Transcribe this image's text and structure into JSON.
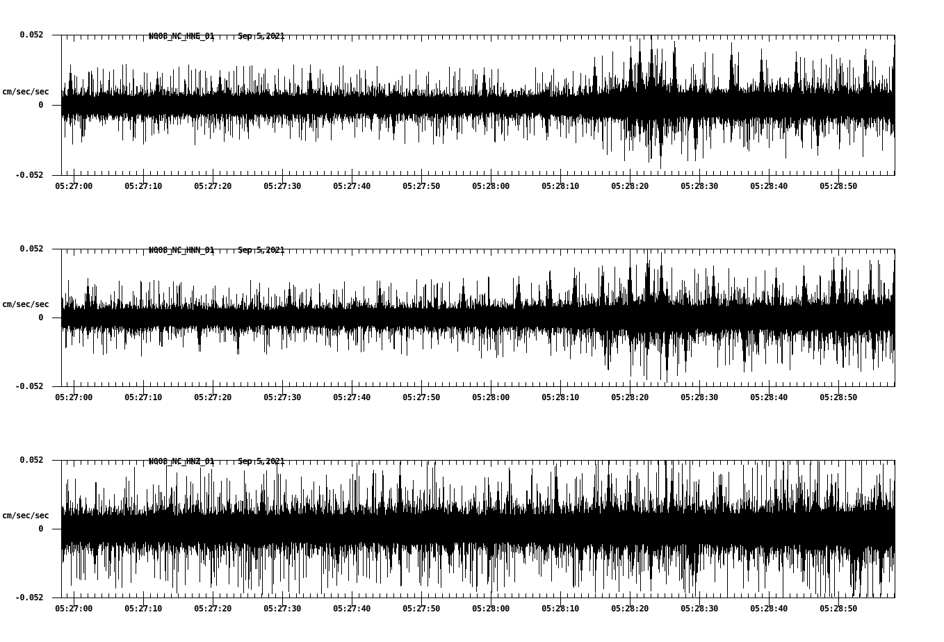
{
  "figure": {
    "background": "#ffffff",
    "trace_color": "#000000",
    "kind": "three-component strong-motion seismogram record"
  },
  "chart_data": [
    {
      "type": "line",
      "station": "N008_NC_HNE_01",
      "date": "Sep 5,2021",
      "ylabel": "cm/sec/sec",
      "ylim": [
        -0.052,
        0.052
      ],
      "yticks": [
        0.052,
        0,
        -0.052
      ],
      "ytick_labels": [
        "0.052",
        "0",
        "-0.052"
      ],
      "xticks": [
        "05:27:00",
        "05:27:10",
        "05:27:20",
        "05:27:30",
        "05:27:40",
        "05:27:50",
        "05:28:00",
        "05:28:10",
        "05:28:20",
        "05:28:30",
        "05:28:40",
        "05:28:50"
      ],
      "x_window": [
        "05:26:58",
        "05:28:58"
      ],
      "x_major_tick_interval_seconds": 10,
      "x_minor_tick_interval_seconds": 1,
      "description": "East-component acceleration: steady noise ~±0.014, earthquake arrival ~05:28:12, peak shaking ±0.052 near 05:28:20-05:28:25, elevated coda to end",
      "seed": 11,
      "envelope_t_amp": [
        [
          -2,
          0.014
        ],
        [
          10,
          0.014
        ],
        [
          20,
          0.014
        ],
        [
          30,
          0.0145
        ],
        [
          40,
          0.014
        ],
        [
          50,
          0.0135
        ],
        [
          58,
          0.013
        ],
        [
          64,
          0.0125
        ],
        [
          70,
          0.013
        ],
        [
          74,
          0.016
        ],
        [
          78,
          0.019
        ],
        [
          81,
          0.021
        ],
        [
          84,
          0.022
        ],
        [
          87,
          0.02
        ],
        [
          91,
          0.018
        ],
        [
          95,
          0.019
        ],
        [
          100,
          0.019
        ],
        [
          105,
          0.018
        ],
        [
          110,
          0.018
        ],
        [
          114,
          0.019
        ],
        [
          118,
          0.019
        ]
      ],
      "spikes_t_amp_dir": [
        [
          -0.5,
          0.03,
          1
        ],
        [
          12,
          0.025,
          1
        ],
        [
          21,
          0.026,
          1
        ],
        [
          34,
          0.03,
          1
        ],
        [
          46,
          0.027,
          -1
        ],
        [
          59,
          0.028,
          1
        ],
        [
          68,
          0.026,
          -1
        ],
        [
          74.9,
          0.036,
          1
        ],
        [
          80.1,
          0.044,
          1
        ],
        [
          81.4,
          0.05,
          1
        ],
        [
          83.1,
          0.052,
          1
        ],
        [
          84.4,
          0.048,
          -1
        ],
        [
          86.4,
          0.048,
          1
        ],
        [
          89.4,
          0.042,
          -1
        ],
        [
          94.6,
          0.047,
          1
        ],
        [
          98.9,
          0.042,
          1
        ],
        [
          103.9,
          0.04,
          1
        ],
        [
          107,
          0.038,
          -1
        ],
        [
          113.9,
          0.042,
          1
        ],
        [
          118,
          0.045,
          1
        ]
      ]
    },
    {
      "type": "line",
      "station": "N008_NC_HNN_01",
      "date": "Sep 5,2021",
      "ylabel": "cm/sec/sec",
      "ylim": [
        -0.052,
        0.052
      ],
      "yticks": [
        0.052,
        0,
        -0.052
      ],
      "ytick_labels": [
        "0.052",
        "0",
        "-0.052"
      ],
      "xticks": [
        "05:27:00",
        "05:27:10",
        "05:27:20",
        "05:27:30",
        "05:27:40",
        "05:27:50",
        "05:28:00",
        "05:28:10",
        "05:28:20",
        "05:28:30",
        "05:28:40",
        "05:28:50"
      ],
      "x_window": [
        "05:26:58",
        "05:28:58"
      ],
      "x_major_tick_interval_seconds": 10,
      "x_minor_tick_interval_seconds": 1,
      "description": "North-component acceleration: noise ~±0.013 gradually rising, strongest shaking ±0.052 near 05:28:20-05:28:25 with deep negative swing, large late pulses near 05:28:49",
      "seed": 22,
      "envelope_t_amp": [
        [
          -2,
          0.013
        ],
        [
          8,
          0.014
        ],
        [
          18,
          0.013
        ],
        [
          28,
          0.013
        ],
        [
          38,
          0.0135
        ],
        [
          48,
          0.014
        ],
        [
          56,
          0.0145
        ],
        [
          63,
          0.015
        ],
        [
          69,
          0.016
        ],
        [
          73,
          0.017
        ],
        [
          77,
          0.019
        ],
        [
          80,
          0.021
        ],
        [
          83,
          0.023
        ],
        [
          86,
          0.021
        ],
        [
          90,
          0.019
        ],
        [
          95,
          0.019
        ],
        [
          100,
          0.02
        ],
        [
          104,
          0.02
        ],
        [
          108,
          0.021
        ],
        [
          112,
          0.02
        ],
        [
          118,
          0.021
        ]
      ],
      "spikes_t_amp_dir": [
        [
          2,
          0.03,
          1
        ],
        [
          18,
          0.026,
          -1
        ],
        [
          31,
          0.027,
          1
        ],
        [
          44,
          0.028,
          1
        ],
        [
          56,
          0.03,
          1
        ],
        [
          64,
          0.032,
          1
        ],
        [
          68.5,
          0.036,
          1
        ],
        [
          72,
          0.038,
          1
        ],
        [
          76,
          0.04,
          1
        ],
        [
          80,
          0.048,
          1
        ],
        [
          82.5,
          0.052,
          1
        ],
        [
          84.5,
          0.05,
          1
        ],
        [
          85.3,
          0.05,
          -1
        ],
        [
          88,
          0.042,
          -1
        ],
        [
          92,
          0.04,
          1
        ],
        [
          96.4,
          0.042,
          -1
        ],
        [
          101,
          0.038,
          1
        ],
        [
          105,
          0.04,
          1
        ],
        [
          109.3,
          0.046,
          1
        ],
        [
          110.5,
          0.046,
          1
        ],
        [
          115,
          0.04,
          -1
        ],
        [
          118,
          0.044,
          1
        ]
      ]
    },
    {
      "type": "line",
      "station": "N008_NC_HNZ_01",
      "date": "Sep 5,2021",
      "ylabel": "cm/sec/sec",
      "ylim": [
        -0.052,
        0.052
      ],
      "yticks": [
        0.052,
        0,
        -0.052
      ],
      "ytick_labels": [
        "0.052",
        "0",
        "-0.052"
      ],
      "xticks": [
        "05:27:00",
        "05:27:10",
        "05:27:20",
        "05:27:30",
        "05:27:40",
        "05:27:50",
        "05:28:00",
        "05:28:10",
        "05:28:20",
        "05:28:30",
        "05:28:40",
        "05:28:50"
      ],
      "x_window": [
        "05:26:58",
        "05:28:58"
      ],
      "x_major_tick_interval_seconds": 10,
      "x_minor_tick_interval_seconds": 1,
      "description": "Vertical-component acceleration: higher broadband noise ~±0.023 throughout, spikes to ±0.052 near 05:27:47, 05:28:17 and at record end",
      "seed": 33,
      "envelope_t_amp": [
        [
          -2,
          0.022
        ],
        [
          10,
          0.022
        ],
        [
          20,
          0.023
        ],
        [
          30,
          0.023
        ],
        [
          40,
          0.023
        ],
        [
          48,
          0.024
        ],
        [
          55,
          0.023
        ],
        [
          62,
          0.023
        ],
        [
          68,
          0.024
        ],
        [
          73,
          0.025
        ],
        [
          77,
          0.026
        ],
        [
          81,
          0.026
        ],
        [
          85,
          0.026
        ],
        [
          90,
          0.025
        ],
        [
          95,
          0.025
        ],
        [
          100,
          0.026
        ],
        [
          105,
          0.027
        ],
        [
          110,
          0.028
        ],
        [
          114,
          0.028
        ],
        [
          118,
          0.029
        ]
      ],
      "spikes_t_amp_dir": [
        [
          3,
          0.034,
          -1
        ],
        [
          14,
          0.032,
          1
        ],
        [
          27,
          0.034,
          1
        ],
        [
          38,
          0.033,
          -1
        ],
        [
          46.9,
          0.051,
          1
        ],
        [
          54,
          0.034,
          -1
        ],
        [
          61,
          0.036,
          1
        ],
        [
          69.4,
          0.05,
          1
        ],
        [
          73,
          0.04,
          -1
        ],
        [
          76.9,
          0.052,
          1
        ],
        [
          80,
          0.046,
          1
        ],
        [
          83,
          0.048,
          -1
        ],
        [
          86,
          0.046,
          1
        ],
        [
          89,
          0.044,
          -1
        ],
        [
          93,
          0.042,
          1
        ],
        [
          97,
          0.04,
          -1
        ],
        [
          101,
          0.038,
          1
        ],
        [
          105,
          0.04,
          -1
        ],
        [
          109,
          0.042,
          1
        ],
        [
          112.5,
          0.04,
          -1
        ],
        [
          115.9,
          0.042,
          1
        ],
        [
          116.1,
          0.051,
          -1
        ]
      ]
    }
  ]
}
